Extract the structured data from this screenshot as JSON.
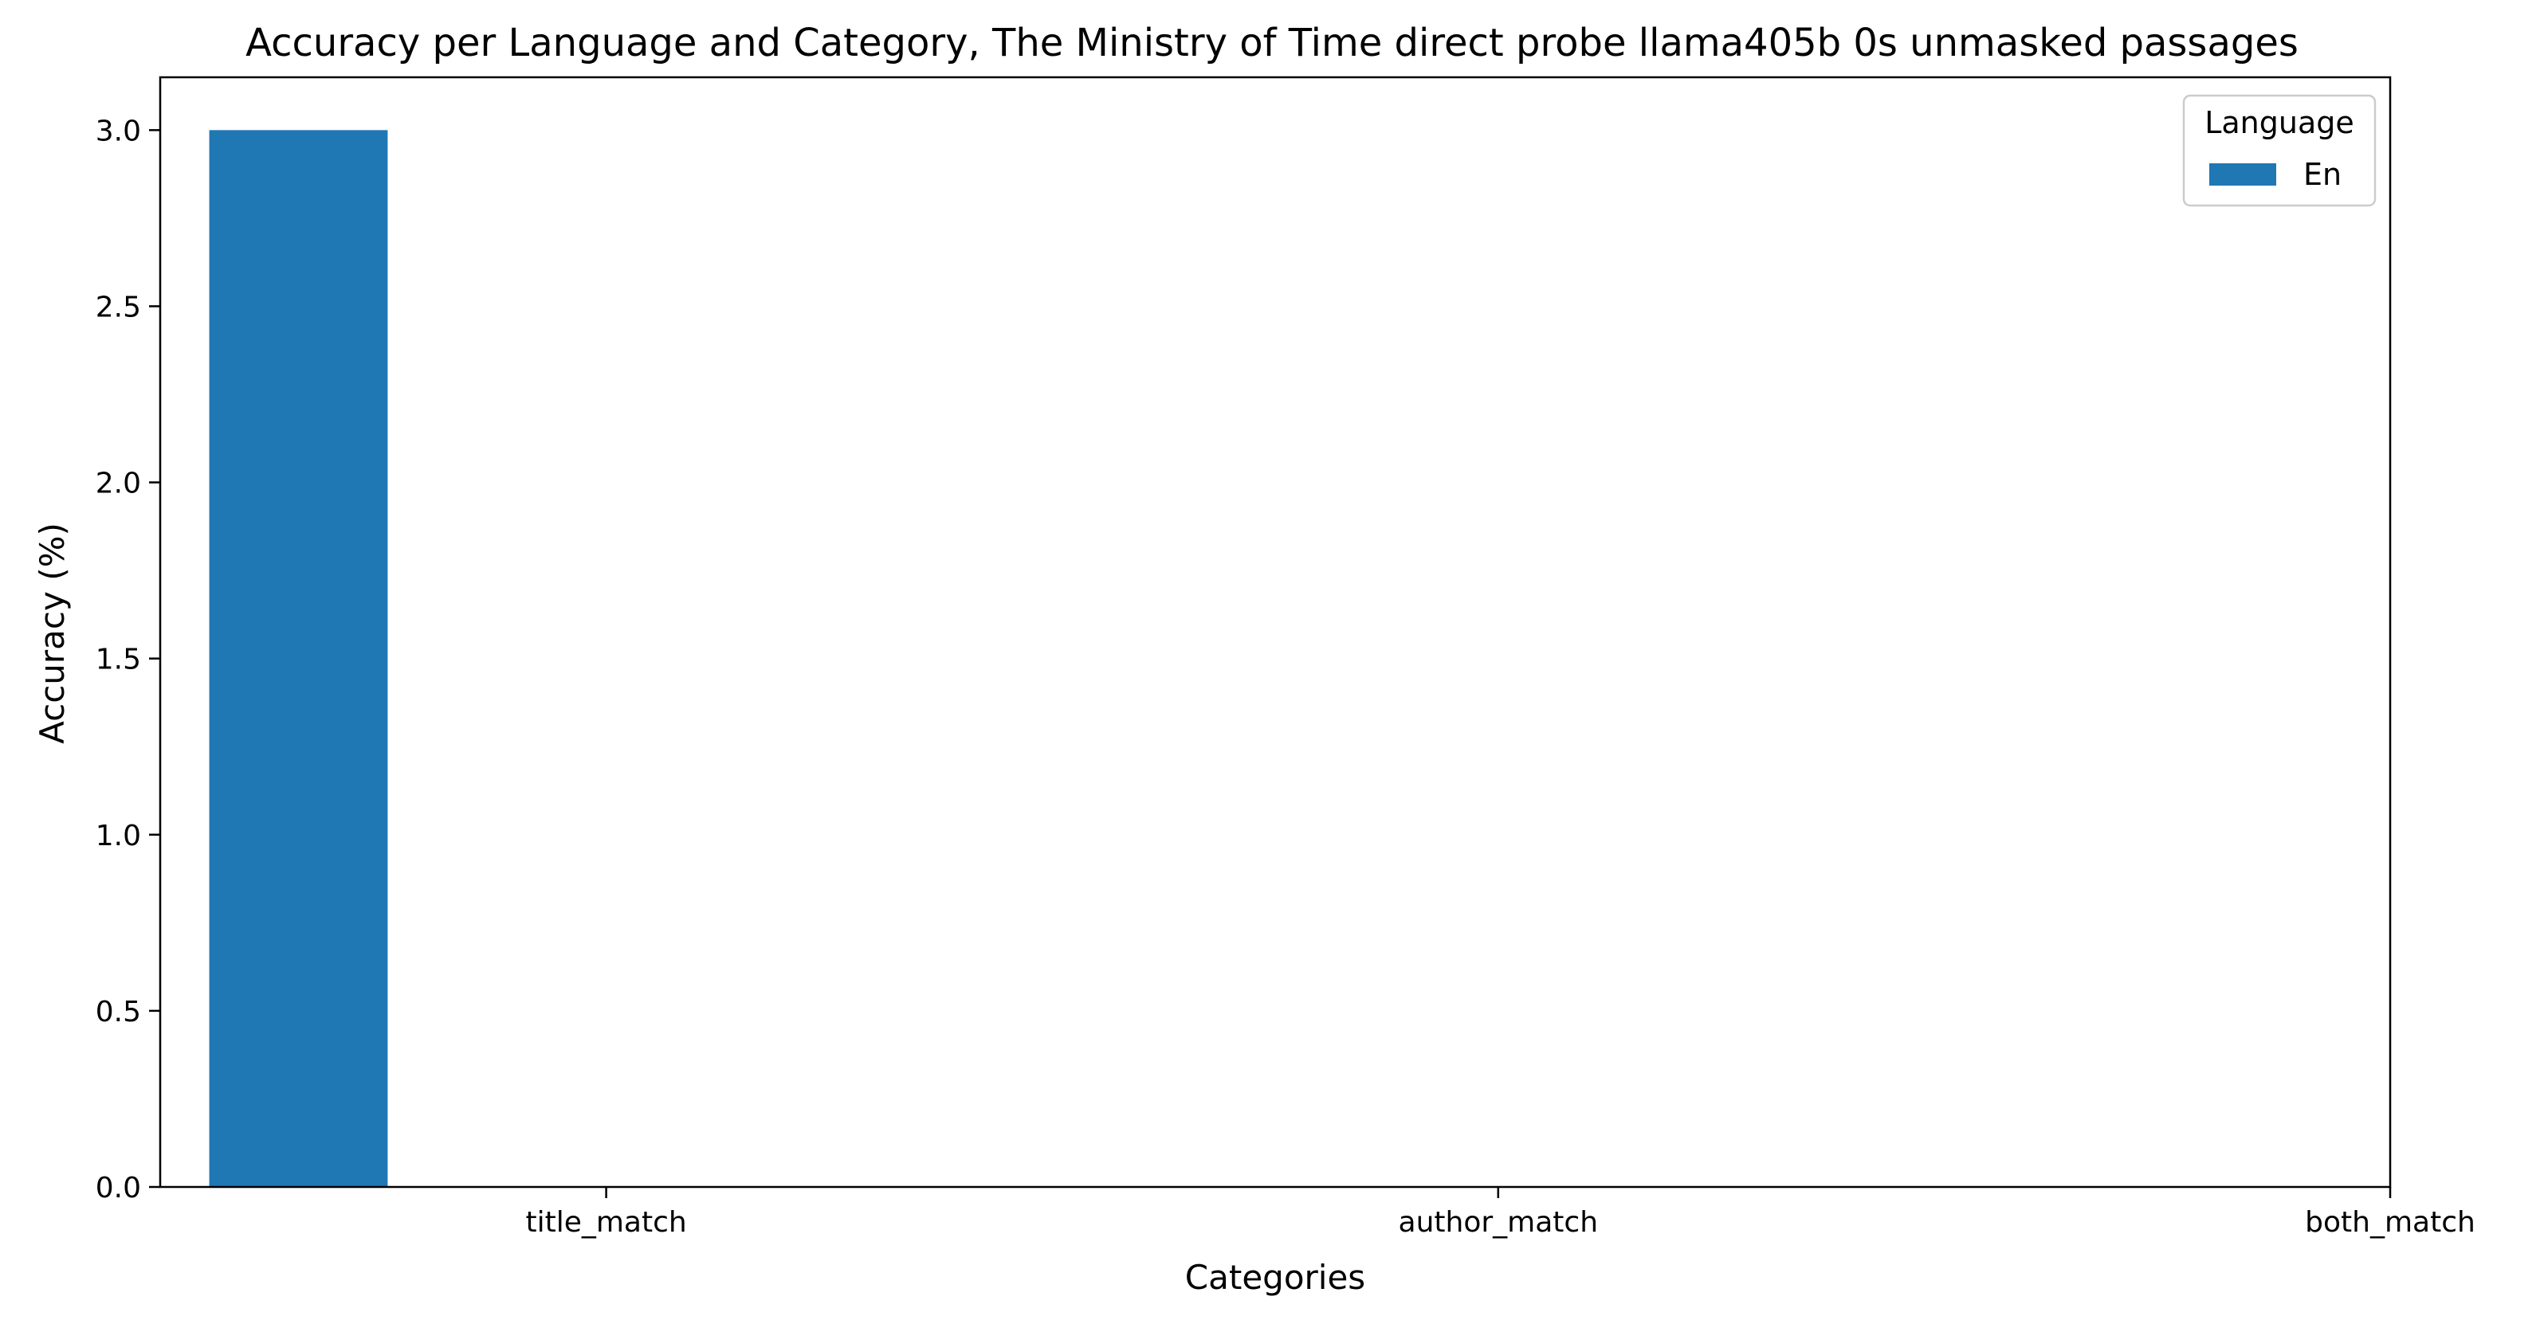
{
  "chart_data": {
    "type": "bar",
    "title": "Accuracy per Language and Category, The Ministry of Time direct probe llama405b 0s unmasked passages",
    "xlabel": "Categories",
    "ylabel": "Accuracy (%)",
    "categories": [
      "title_match",
      "author_match",
      "both_match"
    ],
    "series": [
      {
        "name": "En",
        "values": [
          3.0,
          0.0,
          0.0
        ],
        "color": "#1f77b4"
      }
    ],
    "ylim": [
      0,
      3.15
    ],
    "yticks": [
      "0.0",
      "0.5",
      "1.0",
      "1.5",
      "2.0",
      "2.5",
      "3.0"
    ],
    "grid": false,
    "legend": {
      "title": "Language",
      "position": "top-right"
    }
  }
}
